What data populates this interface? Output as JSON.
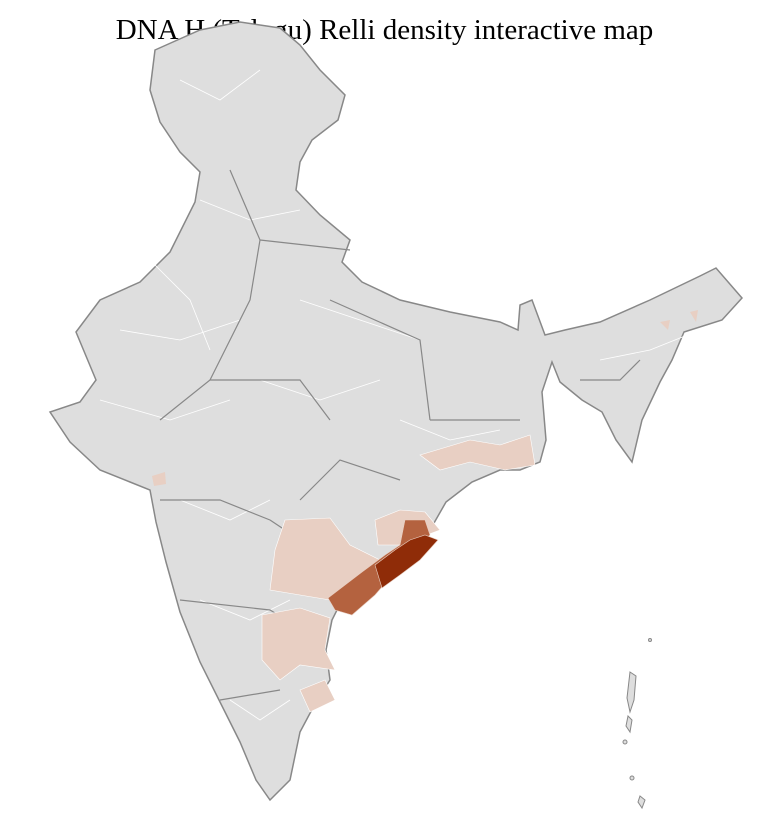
{
  "title": "DNA H (Telugu) Relli density interactive map",
  "map": {
    "region": "India",
    "colors": {
      "no_data": "#dedede",
      "state_border": "#888888",
      "district_border": "#ffffff",
      "low_density": "#e8cfc3",
      "medium_density": "#b4623f",
      "high_density": "#8f2c08"
    }
  }
}
